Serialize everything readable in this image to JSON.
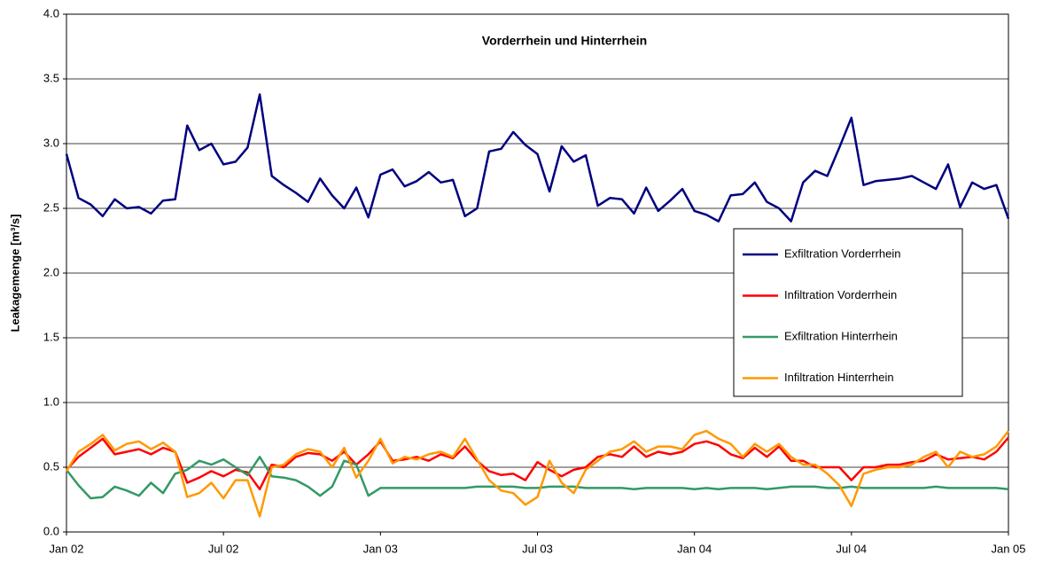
{
  "chart_data": {
    "type": "line",
    "title": "Vorderrhein und Hinterrhein",
    "y_label": "Leakagemenge [m³/s]",
    "x_labels": [
      "Jan 02",
      "Jul 02",
      "Jan 03",
      "Jul 03",
      "Jan 04",
      "Jul 04",
      "Jan 05"
    ],
    "ylim": [
      0,
      4
    ],
    "yticks": [
      {
        "value": 0,
        "label": "0.0"
      },
      0.5,
      {
        "value": 1,
        "label": "1.0"
      },
      1.5,
      {
        "value": 2,
        "label": "2.0"
      },
      2.5,
      {
        "value": 3,
        "label": "3.0"
      },
      3.5,
      {
        "value": 4,
        "label": "4.0"
      }
    ],
    "grid": true,
    "series": [
      {
        "name": "Exfiltration Vorderrhein",
        "color": "#000080",
        "values": [
          2.92,
          2.58,
          2.53,
          2.44,
          2.57,
          2.5,
          2.51,
          2.46,
          2.56,
          2.57,
          3.14,
          2.95,
          3.0,
          2.84,
          2.86,
          2.97,
          3.38,
          2.75,
          2.68,
          2.62,
          2.55,
          2.73,
          2.6,
          2.5,
          2.66,
          2.43,
          2.76,
          2.8,
          2.67,
          2.71,
          2.78,
          2.7,
          2.72,
          2.44,
          2.5,
          2.94,
          2.96,
          3.09,
          2.99,
          2.92,
          2.63,
          2.98,
          2.86,
          2.91,
          2.52,
          2.58,
          2.57,
          2.46,
          2.66,
          2.48,
          2.56,
          2.65,
          2.48,
          2.45,
          2.4,
          2.6,
          2.61,
          2.7,
          2.55,
          2.5,
          2.4,
          2.7,
          2.79,
          2.75,
          2.97,
          3.2,
          2.68,
          2.71,
          2.72,
          2.73,
          2.75,
          2.7,
          2.65,
          2.84,
          2.51,
          2.7,
          2.65,
          2.68,
          2.42
        ]
      },
      {
        "name": "Infiltration Vorderrhein",
        "color": "#ff0000",
        "values": [
          0.48,
          0.58,
          0.65,
          0.72,
          0.6,
          0.62,
          0.64,
          0.6,
          0.65,
          0.62,
          0.38,
          0.42,
          0.47,
          0.43,
          0.48,
          0.46,
          0.33,
          0.52,
          0.5,
          0.58,
          0.61,
          0.6,
          0.55,
          0.62,
          0.52,
          0.6,
          0.7,
          0.55,
          0.56,
          0.58,
          0.55,
          0.6,
          0.57,
          0.66,
          0.55,
          0.47,
          0.44,
          0.45,
          0.4,
          0.54,
          0.48,
          0.43,
          0.48,
          0.5,
          0.58,
          0.6,
          0.58,
          0.66,
          0.58,
          0.62,
          0.6,
          0.62,
          0.68,
          0.7,
          0.67,
          0.6,
          0.57,
          0.65,
          0.58,
          0.66,
          0.55,
          0.55,
          0.5,
          0.5,
          0.5,
          0.4,
          0.5,
          0.5,
          0.52,
          0.52,
          0.54,
          0.55,
          0.6,
          0.56,
          0.57,
          0.58,
          0.56,
          0.62,
          0.73
        ]
      },
      {
        "name": "Exfiltration Hinterrhein",
        "color": "#339966",
        "values": [
          0.48,
          0.36,
          0.26,
          0.27,
          0.35,
          0.32,
          0.28,
          0.38,
          0.3,
          0.45,
          0.48,
          0.55,
          0.52,
          0.56,
          0.5,
          0.44,
          0.58,
          0.43,
          0.42,
          0.4,
          0.35,
          0.28,
          0.35,
          0.55,
          0.52,
          0.28,
          0.34,
          0.34,
          0.34,
          0.34,
          0.34,
          0.34,
          0.34,
          0.34,
          0.35,
          0.35,
          0.35,
          0.35,
          0.34,
          0.34,
          0.35,
          0.35,
          0.35,
          0.34,
          0.34,
          0.34,
          0.34,
          0.33,
          0.34,
          0.34,
          0.34,
          0.34,
          0.33,
          0.34,
          0.33,
          0.34,
          0.34,
          0.34,
          0.33,
          0.34,
          0.35,
          0.35,
          0.35,
          0.34,
          0.34,
          0.35,
          0.34,
          0.34,
          0.34,
          0.34,
          0.34,
          0.34,
          0.35,
          0.34,
          0.34,
          0.34,
          0.34,
          0.34,
          0.33
        ]
      },
      {
        "name": "Infiltration Hinterrhein",
        "color": "#ff9900",
        "values": [
          0.47,
          0.62,
          0.68,
          0.75,
          0.63,
          0.68,
          0.7,
          0.64,
          0.69,
          0.62,
          0.27,
          0.3,
          0.38,
          0.26,
          0.4,
          0.4,
          0.12,
          0.5,
          0.52,
          0.6,
          0.64,
          0.62,
          0.5,
          0.65,
          0.42,
          0.55,
          0.72,
          0.53,
          0.58,
          0.56,
          0.6,
          0.62,
          0.58,
          0.72,
          0.56,
          0.4,
          0.32,
          0.3,
          0.21,
          0.27,
          0.55,
          0.38,
          0.3,
          0.48,
          0.55,
          0.62,
          0.64,
          0.7,
          0.62,
          0.66,
          0.66,
          0.64,
          0.75,
          0.78,
          0.72,
          0.68,
          0.58,
          0.68,
          0.62,
          0.68,
          0.58,
          0.52,
          0.52,
          0.45,
          0.36,
          0.2,
          0.45,
          0.48,
          0.5,
          0.5,
          0.52,
          0.58,
          0.62,
          0.5,
          0.62,
          0.58,
          0.6,
          0.66,
          0.78
        ]
      }
    ]
  }
}
